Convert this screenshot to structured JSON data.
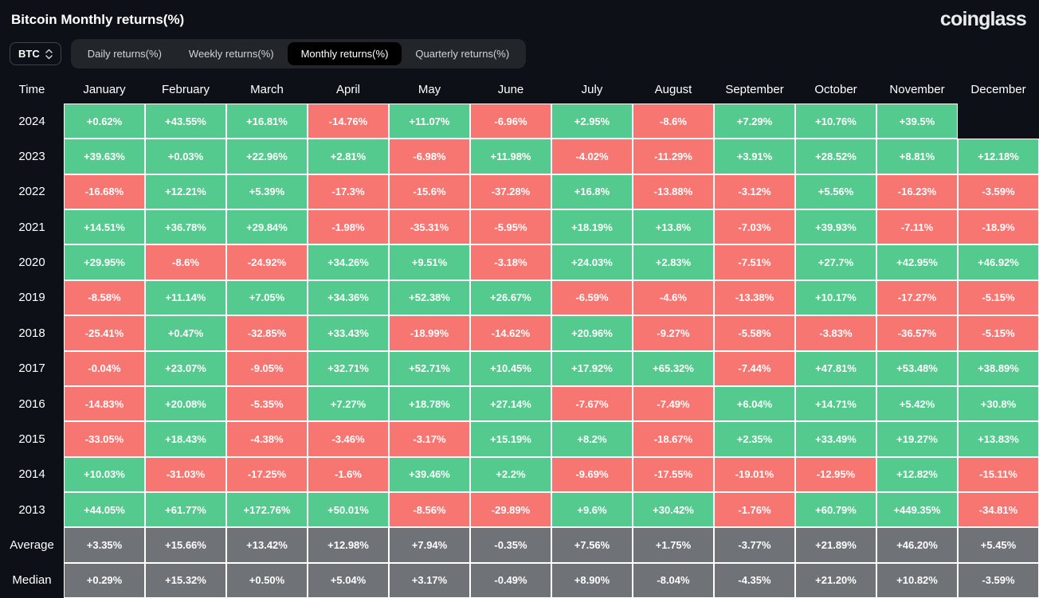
{
  "header": {
    "title": "Bitcoin Monthly returns(%)",
    "logo": "coinglass"
  },
  "controls": {
    "coin_label": "BTC",
    "tabs": [
      {
        "label": "Daily returns(%)",
        "active": false
      },
      {
        "label": "Weekly returns(%)",
        "active": false
      },
      {
        "label": "Monthly returns(%)",
        "active": true
      },
      {
        "label": "Quarterly returns(%)",
        "active": false
      }
    ]
  },
  "colors": {
    "positive": "#55ca8e",
    "negative": "#f87672",
    "summary": "#6f7277",
    "background": "#0d1016",
    "cell_border": "#ffffff",
    "tab_bar_bg": "#22252a",
    "active_tab_bg": "#000000"
  },
  "chart_data": {
    "type": "heatmap",
    "title": "Bitcoin Monthly returns(%)",
    "row_header": "Time",
    "columns": [
      "January",
      "February",
      "March",
      "April",
      "May",
      "June",
      "July",
      "August",
      "September",
      "October",
      "November",
      "December"
    ],
    "rows": [
      {
        "label": "2024",
        "kind": "year",
        "values": [
          "+0.62%",
          "+43.55%",
          "+16.81%",
          "-14.76%",
          "+11.07%",
          "-6.96%",
          "+2.95%",
          "-8.6%",
          "+7.29%",
          "+10.76%",
          "+39.5%",
          ""
        ]
      },
      {
        "label": "2023",
        "kind": "year",
        "values": [
          "+39.63%",
          "+0.03%",
          "+22.96%",
          "+2.81%",
          "-6.98%",
          "+11.98%",
          "-4.02%",
          "-11.29%",
          "+3.91%",
          "+28.52%",
          "+8.81%",
          "+12.18%"
        ]
      },
      {
        "label": "2022",
        "kind": "year",
        "values": [
          "-16.68%",
          "+12.21%",
          "+5.39%",
          "-17.3%",
          "-15.6%",
          "-37.28%",
          "+16.8%",
          "-13.88%",
          "-3.12%",
          "+5.56%",
          "-16.23%",
          "-3.59%"
        ]
      },
      {
        "label": "2021",
        "kind": "year",
        "values": [
          "+14.51%",
          "+36.78%",
          "+29.84%",
          "-1.98%",
          "-35.31%",
          "-5.95%",
          "+18.19%",
          "+13.8%",
          "-7.03%",
          "+39.93%",
          "-7.11%",
          "-18.9%"
        ]
      },
      {
        "label": "2020",
        "kind": "year",
        "values": [
          "+29.95%",
          "-8.6%",
          "-24.92%",
          "+34.26%",
          "+9.51%",
          "-3.18%",
          "+24.03%",
          "+2.83%",
          "-7.51%",
          "+27.7%",
          "+42.95%",
          "+46.92%"
        ]
      },
      {
        "label": "2019",
        "kind": "year",
        "values": [
          "-8.58%",
          "+11.14%",
          "+7.05%",
          "+34.36%",
          "+52.38%",
          "+26.67%",
          "-6.59%",
          "-4.6%",
          "-13.38%",
          "+10.17%",
          "-17.27%",
          "-5.15%"
        ]
      },
      {
        "label": "2018",
        "kind": "year",
        "values": [
          "-25.41%",
          "+0.47%",
          "-32.85%",
          "+33.43%",
          "-18.99%",
          "-14.62%",
          "+20.96%",
          "-9.27%",
          "-5.58%",
          "-3.83%",
          "-36.57%",
          "-5.15%"
        ]
      },
      {
        "label": "2017",
        "kind": "year",
        "values": [
          "-0.04%",
          "+23.07%",
          "-9.05%",
          "+32.71%",
          "+52.71%",
          "+10.45%",
          "+17.92%",
          "+65.32%",
          "-7.44%",
          "+47.81%",
          "+53.48%",
          "+38.89%"
        ]
      },
      {
        "label": "2016",
        "kind": "year",
        "values": [
          "-14.83%",
          "+20.08%",
          "-5.35%",
          "+7.27%",
          "+18.78%",
          "+27.14%",
          "-7.67%",
          "-7.49%",
          "+6.04%",
          "+14.71%",
          "+5.42%",
          "+30.8%"
        ]
      },
      {
        "label": "2015",
        "kind": "year",
        "values": [
          "-33.05%",
          "+18.43%",
          "-4.38%",
          "-3.46%",
          "-3.17%",
          "+15.19%",
          "+8.2%",
          "-18.67%",
          "+2.35%",
          "+33.49%",
          "+19.27%",
          "+13.83%"
        ]
      },
      {
        "label": "2014",
        "kind": "year",
        "values": [
          "+10.03%",
          "-31.03%",
          "-17.25%",
          "-1.6%",
          "+39.46%",
          "+2.2%",
          "-9.69%",
          "-17.55%",
          "-19.01%",
          "-12.95%",
          "+12.82%",
          "-15.11%"
        ]
      },
      {
        "label": "2013",
        "kind": "year",
        "values": [
          "+44.05%",
          "+61.77%",
          "+172.76%",
          "+50.01%",
          "-8.56%",
          "-29.89%",
          "+9.6%",
          "+30.42%",
          "-1.76%",
          "+60.79%",
          "+449.35%",
          "-34.81%"
        ]
      },
      {
        "label": "Average",
        "kind": "summary",
        "values": [
          "+3.35%",
          "+15.66%",
          "+13.42%",
          "+12.98%",
          "+7.94%",
          "-0.35%",
          "+7.56%",
          "+1.75%",
          "-3.77%",
          "+21.89%",
          "+46.20%",
          "+5.45%"
        ]
      },
      {
        "label": "Median",
        "kind": "summary",
        "values": [
          "+0.29%",
          "+15.32%",
          "+0.50%",
          "+5.04%",
          "+3.17%",
          "-0.49%",
          "+8.90%",
          "-8.04%",
          "-4.35%",
          "+21.20%",
          "+10.82%",
          "-3.59%"
        ]
      }
    ]
  }
}
